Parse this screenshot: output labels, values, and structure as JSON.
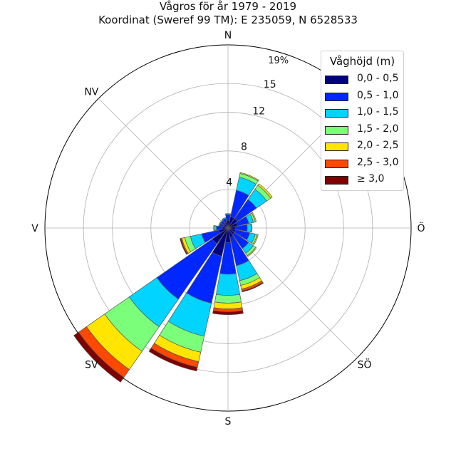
{
  "title_line1": "Vågros för år 1979 - 2019",
  "title_line2": "Koordinat (Sweref 99 TM): E 235059, N 6528533",
  "chart_data": {
    "type": "windrose",
    "directions": [
      "N",
      "NNO",
      "NO",
      "ONO",
      "Ö",
      "OSO",
      "SÖ",
      "SSO",
      "S",
      "SSV",
      "SV",
      "VSV",
      "V",
      "VNV",
      "NV",
      "NNV"
    ],
    "direction_labels": [
      "N",
      "NO",
      "Ö",
      "SÖ",
      "S",
      "SV",
      "V",
      "NV"
    ],
    "radial_ticks": [
      4,
      8,
      12,
      15
    ],
    "radial_max_label": "19%",
    "rmax": 19,
    "legend": {
      "title": "Våghöjd (m)",
      "placement": "top-right",
      "bins": [
        "0,0 - 0,5",
        "0,5 - 1,0",
        "1,0 - 1,5",
        "1,5 - 2,0",
        "2,0 - 2,5",
        "2,5 - 3,0",
        "≥ 3,0"
      ],
      "colors": [
        "#00007f",
        "#0027ff",
        "#00d4ff",
        "#7bff7b",
        "#ffe500",
        "#ff4800",
        "#7f0000"
      ]
    },
    "series": [
      {
        "direction": "N",
        "values": [
          0.8,
          0.6,
          0.1,
          0,
          0,
          0,
          0
        ]
      },
      {
        "direction": "NNO",
        "values": [
          1.2,
          2.8,
          1.4,
          0.4,
          0.1,
          0,
          0
        ]
      },
      {
        "direction": "NO",
        "values": [
          1.2,
          2.4,
          1.3,
          0.5,
          0.2,
          0,
          0
        ]
      },
      {
        "direction": "ONO",
        "values": [
          1.0,
          1.2,
          0.5,
          0.2,
          0.1,
          0,
          0
        ]
      },
      {
        "direction": "Ö",
        "values": [
          0.8,
          1.2,
          0.4,
          0.1,
          0,
          0,
          0
        ]
      },
      {
        "direction": "OSO",
        "values": [
          0.8,
          1.5,
          0.6,
          0.2,
          0.1,
          0,
          0
        ]
      },
      {
        "direction": "SÖ",
        "values": [
          0.8,
          1.8,
          0.6,
          0.3,
          0.1,
          0,
          0
        ]
      },
      {
        "direction": "SSO",
        "values": [
          1.0,
          3.0,
          1.6,
          0.5,
          0.4,
          0.2,
          0.1
        ]
      },
      {
        "direction": "S",
        "values": [
          1.5,
          3.3,
          2.2,
          0.8,
          0.6,
          0.3,
          0.3
        ]
      },
      {
        "direction": "SSV",
        "values": [
          3.0,
          5.0,
          3.5,
          1.7,
          1.0,
          0.6,
          0.4
        ]
      },
      {
        "direction": "SV",
        "values": [
          2.0,
          7.0,
          3.5,
          3.1,
          2.3,
          1.0,
          0.6
        ]
      },
      {
        "direction": "VSV",
        "values": [
          1.0,
          1.8,
          1.2,
          0.6,
          0.3,
          0.1,
          0.1
        ]
      },
      {
        "direction": "V",
        "values": [
          0.6,
          0.6,
          0.2,
          0.1,
          0,
          0,
          0
        ]
      },
      {
        "direction": "VNV",
        "values": [
          0.5,
          0.4,
          0.1,
          0,
          0,
          0,
          0
        ]
      },
      {
        "direction": "NV",
        "values": [
          0.5,
          0.4,
          0.1,
          0,
          0,
          0,
          0
        ]
      },
      {
        "direction": "NNV",
        "values": [
          0.6,
          0.4,
          0.1,
          0,
          0,
          0,
          0
        ]
      }
    ]
  }
}
